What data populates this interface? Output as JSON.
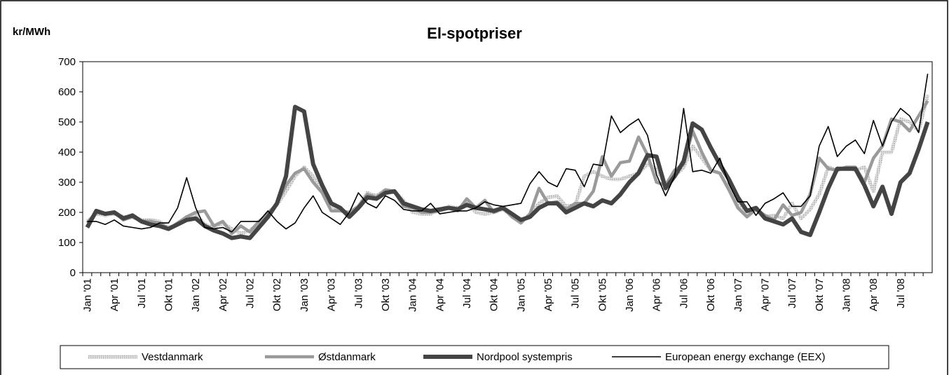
{
  "chart_data": {
    "type": "line",
    "title": "El-spotpriser",
    "y_label": "kr/MWh",
    "categories": [
      "Jan '01",
      null,
      null,
      "Apr '01",
      null,
      null,
      "Jul '01",
      null,
      null,
      "Okt '01",
      null,
      null,
      "Jan '02",
      null,
      null,
      "Apr '02",
      null,
      null,
      "Jul '02",
      null,
      null,
      "Okt '02",
      null,
      null,
      "Jan '03",
      null,
      null,
      "Apr '03",
      null,
      null,
      "Jul '03",
      null,
      null,
      "Okt '03",
      null,
      null,
      "Jan '04",
      null,
      null,
      "Apr '04",
      null,
      null,
      "Jul '04",
      null,
      null,
      "Okt '04",
      null,
      null,
      "Jan '05",
      null,
      null,
      "Apr '05",
      null,
      null,
      "Jul '05",
      null,
      null,
      "Okt '05",
      null,
      null,
      "Jan '06",
      null,
      null,
      "Apr '06",
      null,
      null,
      "Jul '06",
      null,
      null,
      "Okt '06",
      null,
      null,
      "Jan '07",
      null,
      null,
      "Apr '07",
      null,
      null,
      "Jul '07",
      null,
      null,
      "Okt '07",
      null,
      null,
      "Jan '08",
      null,
      null,
      "Apr '08",
      null,
      null,
      "Jul '08",
      null,
      null,
      null
    ],
    "series": [
      {
        "name": "Vestdanmark",
        "color": "#c8c8c8",
        "values": [
          170,
          195,
          190,
          195,
          185,
          185,
          175,
          175,
          170,
          150,
          160,
          185,
          195,
          160,
          150,
          165,
          145,
          130,
          140,
          165,
          200,
          225,
          270,
          320,
          350,
          320,
          270,
          220,
          210,
          195,
          220,
          265,
          255,
          275,
          270,
          240,
          200,
          195,
          195,
          210,
          220,
          215,
          230,
          200,
          195,
          200,
          210,
          190,
          165,
          195,
          230,
          250,
          255,
          220,
          225,
          320,
          335,
          320,
          310,
          310,
          320,
          330,
          360,
          345,
          290,
          320,
          350,
          420,
          380,
          340,
          330,
          280,
          230,
          190,
          210,
          185,
          190,
          180,
          230,
          180,
          210,
          260,
          350,
          340,
          350,
          340,
          350,
          270,
          400,
          400,
          510,
          500,
          470,
          590
        ]
      },
      {
        "name": "Østdanmark",
        "color": "#9a9a9a",
        "values": [
          165,
          200,
          195,
          200,
          175,
          185,
          170,
          170,
          165,
          145,
          165,
          185,
          200,
          205,
          155,
          170,
          130,
          155,
          135,
          170,
          195,
          230,
          290,
          330,
          345,
          300,
          265,
          205,
          205,
          200,
          220,
          260,
          250,
          275,
          270,
          220,
          215,
          200,
          200,
          205,
          215,
          205,
          245,
          215,
          240,
          200,
          215,
          185,
          165,
          195,
          280,
          230,
          235,
          210,
          230,
          230,
          270,
          385,
          320,
          365,
          370,
          450,
          390,
          300,
          290,
          340,
          360,
          470,
          400,
          340,
          330,
          275,
          215,
          185,
          210,
          190,
          175,
          225,
          190,
          200,
          260,
          380,
          345,
          340,
          350,
          350,
          300,
          380,
          420,
          510,
          500,
          470,
          520,
          570
        ]
      },
      {
        "name": "Nordpool systempris",
        "color": "#444444",
        "values": [
          150,
          205,
          195,
          200,
          180,
          190,
          170,
          160,
          155,
          145,
          160,
          175,
          180,
          155,
          140,
          130,
          115,
          120,
          115,
          150,
          185,
          230,
          320,
          550,
          535,
          360,
          290,
          230,
          215,
          185,
          215,
          250,
          245,
          265,
          270,
          230,
          220,
          210,
          205,
          210,
          215,
          210,
          225,
          215,
          210,
          205,
          215,
          195,
          175,
          185,
          215,
          230,
          230,
          200,
          215,
          230,
          220,
          240,
          230,
          260,
          300,
          330,
          390,
          385,
          280,
          320,
          370,
          495,
          475,
          415,
          360,
          310,
          250,
          205,
          215,
          180,
          170,
          160,
          180,
          135,
          125,
          200,
          280,
          345,
          345,
          345,
          290,
          220,
          285,
          195,
          300,
          330,
          410,
          500
        ]
      },
      {
        "name": "European energy exchange (EEX)",
        "color": "#000000",
        "values": [
          170,
          170,
          160,
          175,
          155,
          150,
          145,
          150,
          165,
          165,
          215,
          315,
          215,
          150,
          145,
          150,
          135,
          170,
          170,
          170,
          205,
          170,
          145,
          165,
          215,
          255,
          200,
          180,
          160,
          200,
          265,
          230,
          215,
          255,
          240,
          210,
          205,
          205,
          230,
          195,
          200,
          205,
          205,
          215,
          235,
          225,
          220,
          225,
          230,
          295,
          335,
          300,
          285,
          345,
          340,
          285,
          360,
          355,
          520,
          465,
          490,
          510,
          455,
          325,
          255,
          320,
          545,
          335,
          340,
          330,
          380,
          295,
          235,
          235,
          190,
          230,
          245,
          265,
          220,
          220,
          255,
          420,
          485,
          385,
          420,
          440,
          395,
          505,
          420,
          500,
          545,
          520,
          465,
          660
        ]
      }
    ],
    "ylim": [
      0,
      700
    ],
    "yticks": [
      0,
      100,
      200,
      300,
      400,
      500,
      600,
      700
    ],
    "legend": "bottom"
  }
}
